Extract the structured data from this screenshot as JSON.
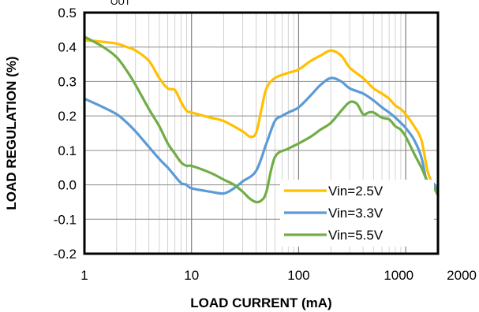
{
  "cropped_label": "OUT",
  "chart_data": {
    "type": "line",
    "title": "",
    "xlabel": "LOAD CURRENT (mA)",
    "ylabel": "LOAD REGULATION (%)",
    "x_scale": "log",
    "xlim": [
      1,
      2000
    ],
    "ylim": [
      -0.2,
      0.5
    ],
    "x_ticks": [
      1,
      10,
      100,
      1000,
      2000
    ],
    "x_tick_labels": [
      "1",
      "10",
      "100",
      "1000",
      "2000"
    ],
    "y_ticks": [
      -0.2,
      -0.1,
      0.0,
      0.1,
      0.2,
      0.3,
      0.4,
      0.5
    ],
    "y_tick_labels": [
      "-0.2",
      "-0.1",
      "0.0",
      "0.1",
      "0.2",
      "0.3",
      "0.4",
      "0.5"
    ],
    "grid": true,
    "legend_position": "bottom-right",
    "series": [
      {
        "name": "Vin=2.5V",
        "color": "#FFC000",
        "x": [
          1,
          1.5,
          2,
          2.5,
          3,
          4,
          5,
          6,
          7,
          8,
          9,
          10,
          15,
          20,
          30,
          35,
          40,
          45,
          50,
          60,
          80,
          100,
          130,
          160,
          200,
          250,
          300,
          400,
          500,
          600,
          700,
          800,
          900,
          1000,
          1200,
          1400,
          1600,
          1800,
          2000
        ],
        "y": [
          0.42,
          0.415,
          0.41,
          0.4,
          0.39,
          0.36,
          0.31,
          0.28,
          0.275,
          0.24,
          0.215,
          0.21,
          0.195,
          0.185,
          0.155,
          0.14,
          0.15,
          0.22,
          0.28,
          0.31,
          0.325,
          0.335,
          0.36,
          0.375,
          0.39,
          0.375,
          0.34,
          0.31,
          0.28,
          0.265,
          0.25,
          0.23,
          0.22,
          0.205,
          0.17,
          0.13,
          0.04,
          0.0,
          -0.03
        ]
      },
      {
        "name": "Vin=3.3V",
        "color": "#5B9BD5",
        "x": [
          1,
          1.5,
          2,
          2.5,
          3,
          4,
          5,
          6,
          7,
          8,
          9,
          10,
          15,
          20,
          25,
          30,
          40,
          50,
          60,
          70,
          80,
          100,
          130,
          160,
          200,
          250,
          300,
          400,
          500,
          600,
          700,
          800,
          900,
          1000,
          1200,
          1400,
          1600,
          1800,
          2000
        ],
        "y": [
          0.25,
          0.225,
          0.205,
          0.18,
          0.155,
          0.11,
          0.075,
          0.05,
          0.025,
          0.005,
          0.0,
          -0.01,
          -0.02,
          -0.025,
          -0.01,
          0.01,
          0.04,
          0.12,
          0.185,
          0.2,
          0.21,
          0.225,
          0.26,
          0.29,
          0.31,
          0.3,
          0.28,
          0.265,
          0.245,
          0.225,
          0.21,
          0.195,
          0.18,
          0.165,
          0.13,
          0.08,
          0.0,
          0.005,
          -0.02
        ]
      },
      {
        "name": "Vin=5.5V",
        "color": "#70AD47",
        "x": [
          1,
          1.5,
          2,
          2.5,
          3,
          4,
          5,
          6,
          7,
          8,
          9,
          10,
          15,
          20,
          25,
          30,
          35,
          40,
          45,
          50,
          60,
          80,
          100,
          130,
          160,
          200,
          250,
          300,
          350,
          400,
          450,
          500,
          600,
          700,
          800,
          900,
          1000,
          1200,
          1400,
          1600,
          1800,
          2000
        ],
        "y": [
          0.43,
          0.4,
          0.37,
          0.33,
          0.29,
          0.22,
          0.17,
          0.12,
          0.09,
          0.065,
          0.055,
          0.055,
          0.035,
          0.015,
          0.0,
          -0.02,
          -0.04,
          -0.05,
          -0.045,
          -0.02,
          0.08,
          0.105,
          0.12,
          0.14,
          0.16,
          0.18,
          0.215,
          0.24,
          0.235,
          0.205,
          0.21,
          0.21,
          0.195,
          0.19,
          0.17,
          0.16,
          0.14,
          0.09,
          0.05,
          0.01,
          -0.005,
          -0.03
        ]
      }
    ]
  }
}
